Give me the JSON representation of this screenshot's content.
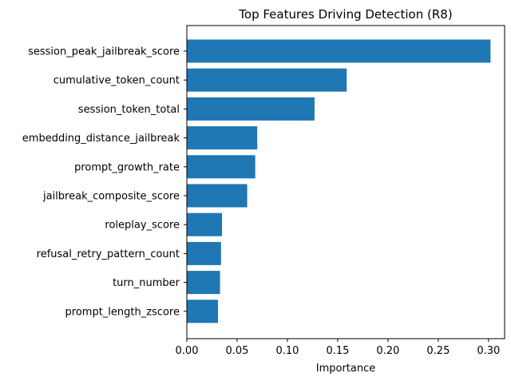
{
  "chart_data": {
    "type": "bar",
    "orientation": "horizontal",
    "title": "Top Features Driving Detection (R8)",
    "xlabel": "Importance",
    "ylabel": "",
    "categories": [
      "session_peak_jailbreak_score",
      "cumulative_token_count",
      "session_token_total",
      "embedding_distance_jailbreak",
      "prompt_growth_rate",
      "jailbreak_composite_score",
      "roleplay_score",
      "refusal_retry_pattern_count",
      "turn_number",
      "prompt_length_zscore"
    ],
    "values": [
      0.302,
      0.159,
      0.127,
      0.07,
      0.068,
      0.06,
      0.035,
      0.034,
      0.033,
      0.031
    ],
    "xticks": [
      "0.00",
      "0.05",
      "0.10",
      "0.15",
      "0.20",
      "0.25",
      "0.30"
    ],
    "xlim": [
      0,
      0.316
    ],
    "bar_color": "#1f77b4",
    "grid": false,
    "legend": "none"
  }
}
